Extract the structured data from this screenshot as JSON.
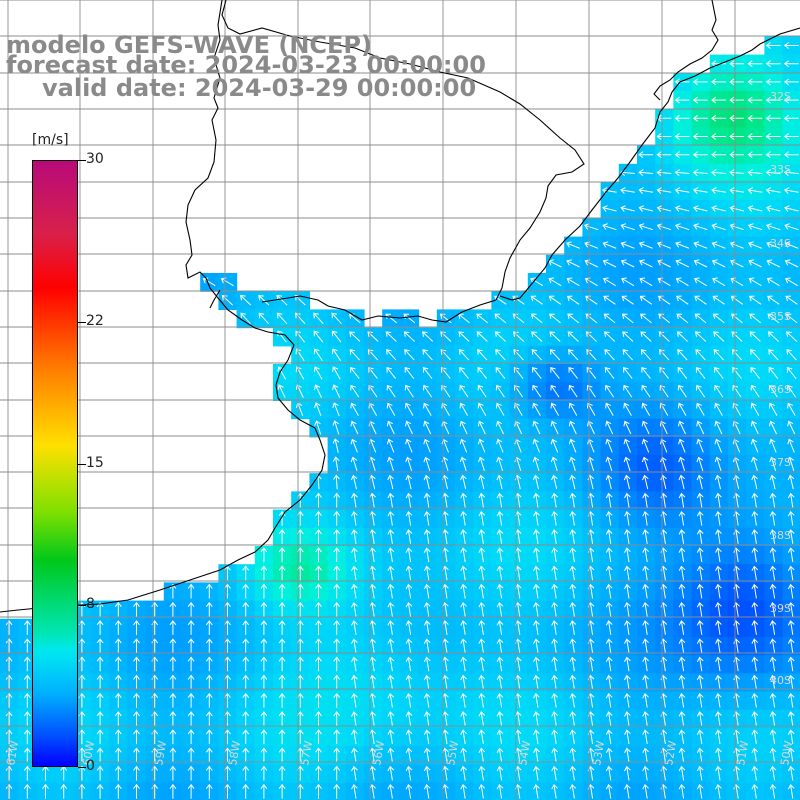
{
  "titles": {
    "model": "modelo GEFS-WAVE (NCEP)",
    "forecast": "forecast date: 2024-03-23 00:00:00",
    "valid": "valid date: 2024-03-29 00:00:00"
  },
  "colorbar": {
    "unit": "[m/s]",
    "min": 0,
    "max": 30,
    "ticks": [
      "30",
      "22",
      "15",
      "8",
      "0"
    ],
    "tick_values": [
      30,
      22,
      15,
      8,
      0
    ],
    "colors": [
      "#0000ff",
      "#0050ff",
      "#00b0ff",
      "#00e8f0",
      "#00c81a",
      "#ffe000",
      "#ff7a00",
      "#ff0000",
      "#b80a7a"
    ]
  },
  "grid": {
    "lat_labels": [
      "32S",
      "33S",
      "34S",
      "35S",
      "36S",
      "37S",
      "38S",
      "39S",
      "40S"
    ],
    "lon_labels": [
      "61W",
      "60W",
      "59W",
      "58W",
      "57W",
      "56W",
      "55W",
      "54W",
      "53W",
      "52W",
      "51W",
      "50W"
    ]
  },
  "colors": {
    "land": "#ffffff",
    "coastline": "#000000",
    "gridline": "#8c8c8c",
    "title_text": "#8a8a8a",
    "arrow": "#ffffff"
  }
}
